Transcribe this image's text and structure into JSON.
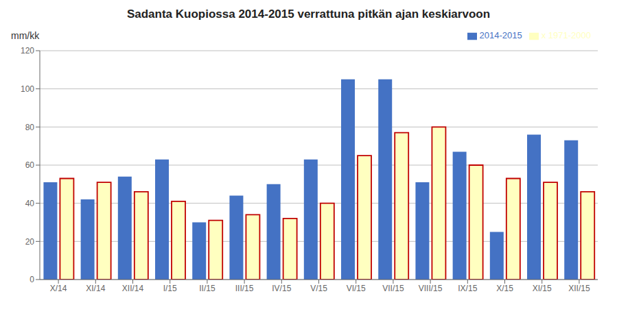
{
  "chart_data": {
    "type": "bar",
    "title": "Sadanta Kuopiossa 2014-2015 verrattuna pitkän ajan keskiarvoon",
    "ylabel": "mm/kk",
    "categories": [
      "X/14",
      "XI/14",
      "XII/14",
      "I/15",
      "II/15",
      "III/15",
      "IV/15",
      "V/15",
      "VI/15",
      "VII/15",
      "VIII/15",
      "IX/15",
      "X/15",
      "XI/15",
      "XII/15"
    ],
    "series": [
      {
        "name": "2014-2015",
        "color": "#4472C4",
        "values": [
          51,
          42,
          54,
          63,
          30,
          44,
          50,
          63,
          105,
          105,
          51,
          67,
          25,
          76,
          73
        ]
      },
      {
        "name": "x 1971-2000",
        "color": "#FFFFC0",
        "values": [
          53,
          51,
          46,
          41,
          31,
          34,
          32,
          40,
          65,
          77,
          80,
          60,
          53,
          51,
          46
        ]
      }
    ],
    "ylim": [
      0,
      120
    ],
    "yticks": [
      0,
      20,
      40,
      60,
      80,
      100,
      120
    ],
    "grid": true,
    "legend": "upper right"
  }
}
